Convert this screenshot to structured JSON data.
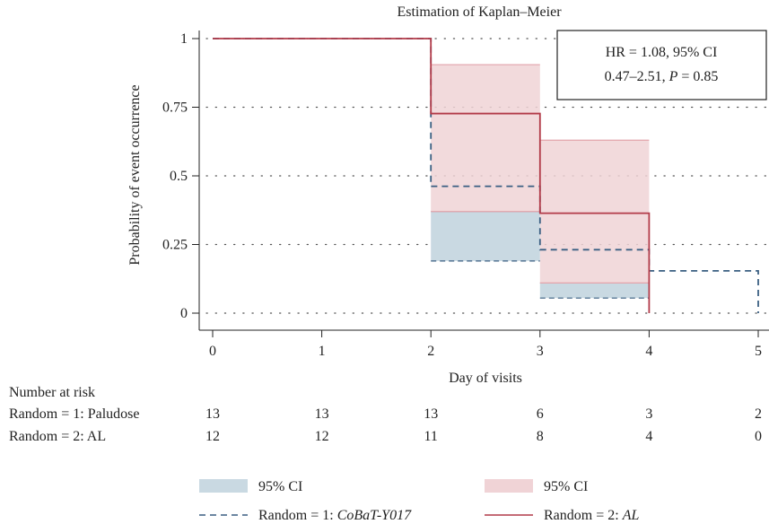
{
  "chart_data": {
    "type": "line",
    "subtype": "kaplan-meier step",
    "title": "Estimation of Kaplan–Meier",
    "xlabel": "Day of visits",
    "ylabel": "Probability of event occurrence",
    "xlim": [
      0,
      5
    ],
    "ylim": [
      0,
      1
    ],
    "x_ticks": [
      0,
      1,
      2,
      3,
      4,
      5
    ],
    "y_ticks": [
      0,
      0.25,
      0.5,
      0.75,
      1
    ],
    "y_tick_labels": [
      "0",
      "0.25",
      "0.5",
      "0.75",
      "1"
    ],
    "grid": "dotted horizontal",
    "annotation": {
      "line1": "HR = 1.08, 95% CI",
      "line2_pre": "0.47–2.51, ",
      "line2_p": "P",
      "line2_post": " = 0.85",
      "placement": "top-right"
    },
    "series": [
      {
        "name": "Random = 1: CoBaT-Y017",
        "legend_prefix": "Random = 1: ",
        "legend_italic": "CoBaT-Y017",
        "color": "#3a5f82",
        "dash": true,
        "steps": [
          [
            0,
            1
          ],
          [
            2,
            0.462
          ],
          [
            3,
            0.231
          ],
          [
            4,
            0.154
          ],
          [
            5,
            0
          ]
        ],
        "ci": [
          {
            "x": [
              2,
              3
            ],
            "lower": 0.19,
            "upper": 0.37
          },
          {
            "x": [
              3,
              4
            ],
            "lower": 0.055,
            "upper": 0.11
          }
        ],
        "ci_color": "#c9d9e2",
        "ci_label": "95% CI"
      },
      {
        "name": "Random = 2: AL",
        "legend_prefix": "Random = 2: ",
        "legend_italic": "AL",
        "color": "#b23a48",
        "dash": false,
        "steps": [
          [
            0,
            1
          ],
          [
            2,
            0.727
          ],
          [
            3,
            0.364
          ],
          [
            4,
            0
          ]
        ],
        "ci": [
          {
            "x": [
              2,
              3
            ],
            "lower": 0.37,
            "upper": 0.905
          },
          {
            "x": [
              3,
              4
            ],
            "lower": 0.11,
            "upper": 0.63
          }
        ],
        "ci_color": "#f0d3d6",
        "ci_label": "95% CI"
      }
    ],
    "risk_table": {
      "title": "Number at risk",
      "rows": [
        {
          "label": "Random = 1: Paludose",
          "values": [
            13,
            13,
            13,
            6,
            3,
            2
          ]
        },
        {
          "label": "Random = 2: AL",
          "values": [
            12,
            12,
            11,
            8,
            4,
            0
          ]
        }
      ]
    },
    "legend_placement": "bottom"
  }
}
